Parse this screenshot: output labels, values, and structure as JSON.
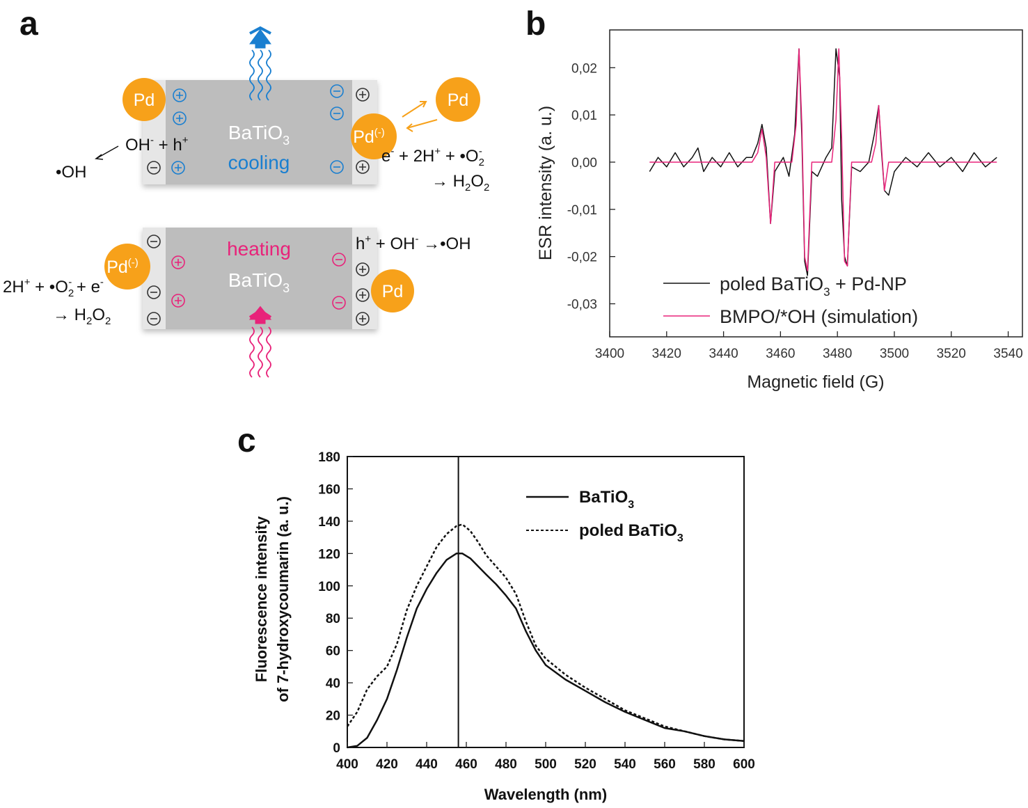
{
  "panel_a": {
    "letter": "a",
    "material": "BaTiO",
    "material_sub": "3",
    "cooling_label": "cooling",
    "heating_label": "heating",
    "pd_label": "Pd",
    "pd_charged_label": "Pd",
    "pd_charged_sup": "(-)",
    "eq_top_left_1": "OH",
    "eq_top_left_sup1": "-",
    "eq_top_left_2": " + h",
    "eq_top_left_sup2": "+",
    "eq_top_left_product": "•OH",
    "eq_top_right_1": "e",
    "eq_top_right_sup1": "-",
    "eq_top_right_2": " + 2H",
    "eq_top_right_sup2": "+",
    "eq_top_right_3": " + •O",
    "eq_top_right_sub3": "2",
    "eq_top_right_sup3": "-",
    "eq_top_right_product": "→ H",
    "eq_top_right_product_sub": "2",
    "eq_top_right_product_end": "O",
    "eq_top_right_product_sub2": "2",
    "eq_bottom_right_1": "h",
    "eq_bottom_right_sup1": "+",
    "eq_bottom_right_2": " + OH",
    "eq_bottom_right_sup2": "-",
    "eq_bottom_right_3": " →•OH",
    "eq_bottom_left_1": "2H",
    "eq_bottom_left_sup1": "+",
    "eq_bottom_left_2": " + •O",
    "eq_bottom_left_sub2": "2",
    "eq_bottom_left_sup2": "-",
    "eq_bottom_left_3": " + e",
    "eq_bottom_left_sup3": "-",
    "eq_bottom_left_product": "→ H",
    "eq_bottom_left_product_sub": "2",
    "eq_bottom_left_product_end": "O",
    "eq_bottom_left_product_sub2": "2",
    "colors": {
      "cooling": "#1a7fd0",
      "heating": "#e8237a",
      "pd": "#f7a11a",
      "slab": "#b9b9b9"
    }
  },
  "chart_data": [
    {
      "panel": "b",
      "type": "line",
      "xlabel": "Magnetic field (G)",
      "ylabel": "ESR intensity (a. u.)",
      "xlim": [
        3400,
        3545
      ],
      "ylim": [
        -0.037,
        0.028
      ],
      "xticks": [
        3400,
        3420,
        3440,
        3460,
        3480,
        3500,
        3520,
        3540
      ],
      "xtick_labels": [
        "3400",
        "3420",
        "3440",
        "3460",
        "3480",
        "3500",
        "3520",
        "3540"
      ],
      "yticks": [
        -0.03,
        -0.02,
        -0.01,
        0.0,
        0.01,
        0.02
      ],
      "ytick_labels": [
        "-0,03",
        "-0,02",
        "-0,01",
        "0,00",
        "0,01",
        "0,02"
      ],
      "legend_position": "bottom",
      "series": [
        {
          "name": "poled BaTiO",
          "name_sub": "3",
          "name_rest": " + Pd-NP",
          "color": "#111111",
          "x": [
            3414,
            3417,
            3420,
            3423,
            3426,
            3429,
            3431,
            3433,
            3436,
            3439,
            3442,
            3445,
            3448,
            3450,
            3452,
            3453.5,
            3455,
            3456.5,
            3458,
            3461,
            3463,
            3465,
            3466.5,
            3467.5,
            3468.5,
            3469.5,
            3471,
            3473,
            3476,
            3478,
            3479.5,
            3480.8,
            3481.5,
            3482.5,
            3483.5,
            3485,
            3488,
            3491,
            3493,
            3494.5,
            3495.5,
            3496.5,
            3498,
            3500,
            3504,
            3508,
            3512,
            3516,
            3520,
            3524,
            3528,
            3532,
            3536
          ],
          "y": [
            -0.002,
            0.001,
            -0.001,
            0.002,
            -0.001,
            0.001,
            0.003,
            -0.002,
            0.001,
            -0.001,
            0.002,
            -0.001,
            0.001,
            0.001,
            0.004,
            0.008,
            0.003,
            -0.013,
            -0.002,
            0.001,
            -0.003,
            0.006,
            0.024,
            0.005,
            -0.021,
            -0.024,
            -0.002,
            -0.003,
            0.001,
            0.003,
            0.024,
            0.018,
            -0.008,
            -0.02,
            -0.022,
            -0.001,
            -0.002,
            0.0,
            0.006,
            0.012,
            0.002,
            -0.006,
            -0.007,
            -0.002,
            0.001,
            -0.001,
            0.002,
            -0.001,
            0.001,
            -0.002,
            0.002,
            -0.001,
            0.001
          ]
        },
        {
          "name": "BMPO/*OH (simulation)",
          "color": "#e8237a",
          "x": [
            3414,
            3450,
            3452,
            3453.5,
            3455,
            3456.5,
            3458,
            3464,
            3465.5,
            3466.5,
            3467.5,
            3468.5,
            3469.5,
            3471,
            3478,
            3479.5,
            3480.5,
            3481.5,
            3482.5,
            3483.5,
            3485,
            3492,
            3493.5,
            3494.5,
            3495.5,
            3496.5,
            3498,
            3536
          ],
          "y": [
            0.0,
            0.0,
            0.002,
            0.007,
            0.001,
            -0.013,
            0.0,
            0.0,
            0.008,
            0.024,
            0.008,
            -0.02,
            -0.023,
            0.0,
            0.0,
            0.009,
            0.024,
            0.005,
            -0.021,
            -0.022,
            0.0,
            0.0,
            0.004,
            0.012,
            0.003,
            -0.006,
            0.0,
            0.0
          ]
        }
      ]
    },
    {
      "panel": "c",
      "type": "line",
      "xlabel": "Wavelength (nm)",
      "ylabel_line1": "Fluorescence intensity",
      "ylabel_line2": "of 7-hydroxycoumarin (a. u.)",
      "xlim": [
        400,
        600
      ],
      "ylim": [
        0,
        180
      ],
      "xticks": [
        400,
        420,
        440,
        460,
        480,
        500,
        520,
        540,
        560,
        580,
        600
      ],
      "xtick_labels": [
        "400",
        "420",
        "440",
        "460",
        "480",
        "500",
        "520",
        "540",
        "560",
        "580",
        "600"
      ],
      "yticks": [
        0,
        20,
        40,
        60,
        80,
        100,
        120,
        140,
        160,
        180
      ],
      "ytick_labels": [
        "0",
        "20",
        "40",
        "60",
        "80",
        "100",
        "120",
        "140",
        "160",
        "180"
      ],
      "reference_line_x": 456,
      "legend_position": "top-right",
      "series": [
        {
          "name": "BaTiO",
          "name_sub": "3",
          "style": "solid",
          "color": "#111111",
          "x": [
            400,
            405,
            410,
            415,
            420,
            425,
            430,
            435,
            440,
            445,
            450,
            455,
            458,
            462,
            466,
            470,
            475,
            480,
            485,
            490,
            495,
            500,
            510,
            520,
            530,
            540,
            550,
            560,
            570,
            580,
            590,
            600
          ],
          "y": [
            0,
            1,
            6,
            17,
            30,
            48,
            68,
            86,
            98,
            108,
            116,
            120,
            120,
            117,
            112,
            107,
            101,
            94,
            86,
            72,
            60,
            51,
            42,
            35,
            28,
            22,
            17,
            12,
            10,
            7,
            5,
            4
          ]
        },
        {
          "name": "poled BaTiO",
          "name_sub": "3",
          "style": "dashed",
          "color": "#111111",
          "x": [
            400,
            405,
            410,
            415,
            420,
            425,
            430,
            435,
            440,
            445,
            450,
            455,
            458,
            462,
            466,
            470,
            475,
            480,
            485,
            490,
            495,
            500,
            510,
            520,
            530,
            540,
            550,
            560,
            570,
            580,
            590,
            600
          ],
          "y": [
            13,
            22,
            36,
            44,
            50,
            64,
            85,
            100,
            112,
            124,
            132,
            137,
            138,
            134,
            127,
            119,
            112,
            105,
            95,
            78,
            63,
            55,
            45,
            37,
            30,
            23,
            18,
            13,
            10,
            7,
            5,
            4
          ]
        }
      ]
    }
  ]
}
